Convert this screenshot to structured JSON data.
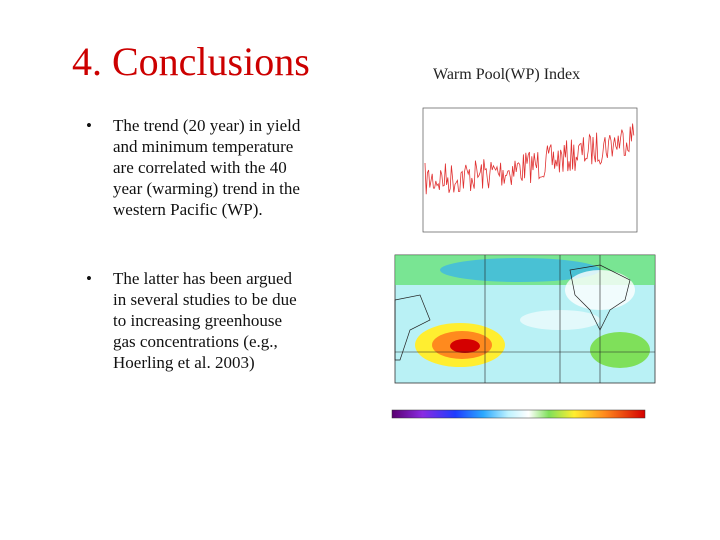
{
  "slide": {
    "title": "4. Conclusions",
    "figure_title": "Warm Pool(WP) Index",
    "bullets": [
      [
        "The trend (20 year) in yield",
        "and minimum temperature",
        "are correlated with the 40",
        "year (warming) trend in the",
        "western Pacific (WP)."
      ],
      [
        "The latter has been argued",
        "in several studies to be due",
        "to increasing greenhouse",
        "gas concentrations (e.g.,",
        "Hoerling et al. 2003)"
      ]
    ]
  }
}
